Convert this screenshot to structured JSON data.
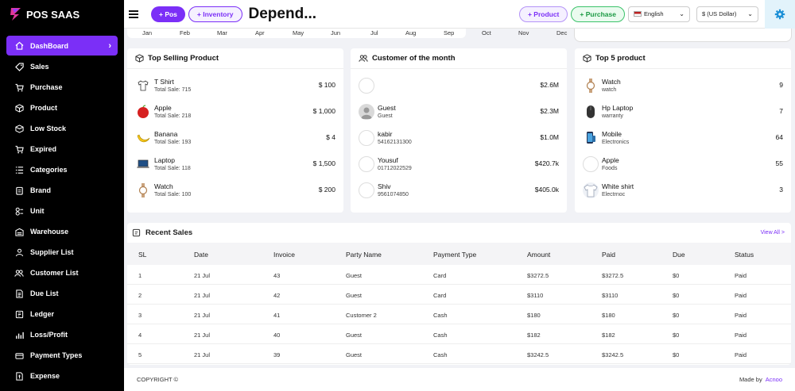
{
  "app": {
    "name": "POS SAAS"
  },
  "header": {
    "pos_label": "+ Pos",
    "inventory_label": "+ Inventory",
    "title": "Depend...",
    "product_label": "+ Product",
    "purchase_label": "+ Purchase",
    "language": "English",
    "currency": "$ (US Dollar)"
  },
  "sidebar": {
    "items": [
      {
        "label": "DashBoard",
        "icon": "home-icon"
      },
      {
        "label": "Sales",
        "icon": "tag-icon"
      },
      {
        "label": "Purchase",
        "icon": "cart-icon"
      },
      {
        "label": "Product",
        "icon": "box-icon"
      },
      {
        "label": "Low Stock",
        "icon": "box-down-icon"
      },
      {
        "label": "Expired",
        "icon": "cart-x-icon"
      },
      {
        "label": "Categories",
        "icon": "list-icon"
      },
      {
        "label": "Brand",
        "icon": "clipboard-icon"
      },
      {
        "label": "Unit",
        "icon": "unit-icon"
      },
      {
        "label": "Warehouse",
        "icon": "warehouse-icon"
      },
      {
        "label": "Supplier List",
        "icon": "supplier-icon"
      },
      {
        "label": "Customer List",
        "icon": "users-icon"
      },
      {
        "label": "Due List",
        "icon": "file-icon"
      },
      {
        "label": "Ledger",
        "icon": "ledger-icon"
      },
      {
        "label": "Loss/Profit",
        "icon": "chart-icon"
      },
      {
        "label": "Payment Types",
        "icon": "payment-icon"
      },
      {
        "label": "Expense",
        "icon": "expense-icon"
      }
    ]
  },
  "chart_months": [
    "Jan",
    "Feb",
    "Mar",
    "Apr",
    "May",
    "Jun",
    "Jul",
    "Aug",
    "Sep",
    "Oct",
    "Nov",
    "Dec"
  ],
  "top_selling": {
    "title": "Top Selling Product",
    "items": [
      {
        "name": "T Shirt",
        "sub": "Total Sale: 715",
        "value": "$ 100"
      },
      {
        "name": "Apple",
        "sub": "Total Sale: 218",
        "value": "$ 1,000"
      },
      {
        "name": "Banana",
        "sub": "Total Sale: 193",
        "value": "$ 4"
      },
      {
        "name": "Laptop",
        "sub": "Total Sale: 118",
        "value": "$ 1,500"
      },
      {
        "name": "Watch",
        "sub": "Total Sale: 100",
        "value": "$ 200"
      }
    ]
  },
  "customers": {
    "title": "Customer of the month",
    "items": [
      {
        "name": "",
        "sub": "",
        "value": "$2.6M"
      },
      {
        "name": "Guest",
        "sub": "Guest",
        "value": "$2.3M"
      },
      {
        "name": "kabir",
        "sub": "54162131300",
        "value": "$1.0M"
      },
      {
        "name": "Yousuf",
        "sub": "01712022529",
        "value": "$420.7k"
      },
      {
        "name": "Shiv",
        "sub": "9561074850",
        "value": "$405.0k"
      }
    ]
  },
  "top5": {
    "title": "Top 5 product",
    "items": [
      {
        "name": "Watch",
        "sub": "watch",
        "value": "9"
      },
      {
        "name": "Hp Laptop",
        "sub": "warranty",
        "value": "7"
      },
      {
        "name": "Mobile",
        "sub": "Electronics",
        "value": "64"
      },
      {
        "name": "Apple",
        "sub": "Foods",
        "value": "55"
      },
      {
        "name": "White shirt",
        "sub": "Electrnoc",
        "value": "3"
      }
    ]
  },
  "recent_sales": {
    "title": "Recent Sales",
    "view_all": "View All >",
    "columns": [
      "SL",
      "Date",
      "Invoice",
      "Party Name",
      "Payment Type",
      "Amount",
      "Paid",
      "Due",
      "Status"
    ],
    "rows": [
      [
        "1",
        "21 Jul",
        "43",
        "Guest",
        "Card",
        "$3272.5",
        "$3272.5",
        "$0",
        "Paid"
      ],
      [
        "2",
        "21 Jul",
        "42",
        "Guest",
        "Card",
        "$3110",
        "$3110",
        "$0",
        "Paid"
      ],
      [
        "3",
        "21 Jul",
        "41",
        "Customer 2",
        "Cash",
        "$180",
        "$180",
        "$0",
        "Paid"
      ],
      [
        "4",
        "21 Jul",
        "40",
        "Guest",
        "Cash",
        "$182",
        "$182",
        "$0",
        "Paid"
      ],
      [
        "5",
        "21 Jul",
        "39",
        "Guest",
        "Cash",
        "$3242.5",
        "$3242.5",
        "$0",
        "Paid"
      ]
    ]
  },
  "footer": {
    "copyright": "COPYRIGHT ©",
    "made_by": "Made by",
    "company": "Acnoo"
  },
  "colors": {
    "accent": "#7b2ff7",
    "sidebar": "#000000",
    "green": "#1b9a44"
  }
}
